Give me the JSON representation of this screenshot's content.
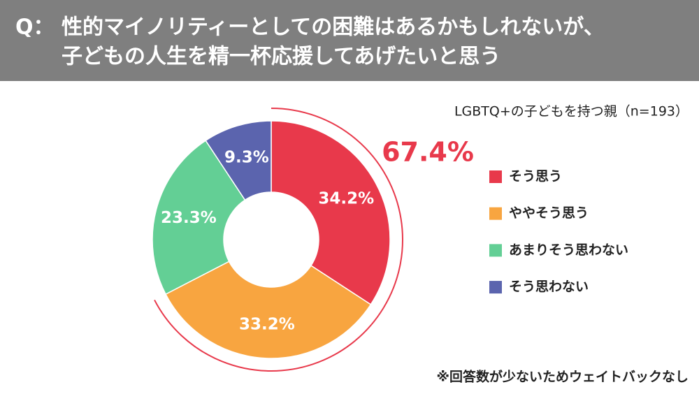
{
  "chart_data": {
    "type": "donut",
    "title_prefix": "Q：",
    "title": [
      "性的マイノリティーとしての困難はあるかもしれないが、",
      "子どもの人生を精一杯応援してあげたいと思う"
    ],
    "subtitle": "LGBTQ+の子どもを持つ親（n=193）",
    "categories": [
      "そう思う",
      "ややそう思う",
      "あまりそう思わない",
      "そう思わない"
    ],
    "values": [
      34.2,
      33.2,
      23.3,
      9.3
    ],
    "value_labels": [
      "34.2%",
      "33.2%",
      "23.3%",
      "9.3%"
    ],
    "colors": [
      "#e8394b",
      "#f8a540",
      "#63cf95",
      "#5b64ae"
    ],
    "annotation": {
      "value": 67.4,
      "label": "67.4%",
      "color": "#e8394b"
    },
    "note": "※回答数が少ないためウェイトバックなし"
  }
}
